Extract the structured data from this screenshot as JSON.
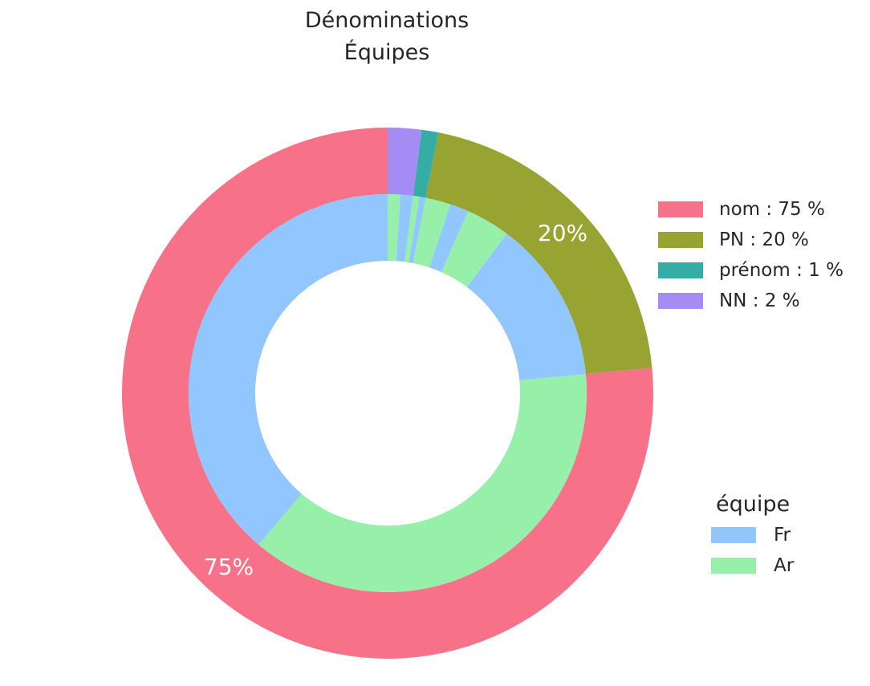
{
  "chart_data": {
    "type": "pie",
    "subtype": "nested-donut",
    "title": "Dénominations",
    "subtitle": "Équipes",
    "outer_ring": {
      "categories": [
        "nom",
        "PN",
        "prénom",
        "NN"
      ],
      "values": [
        75,
        20,
        1,
        2
      ],
      "legend_labels": [
        "nom : 75 %",
        "PN : 20 %",
        "prénom : 1 %",
        "NN : 2 %"
      ],
      "colors": [
        "#f77189",
        "#97a431",
        "#36ada4",
        "#a48cf4"
      ],
      "data_labels": [
        "75%",
        "20%",
        "",
        ""
      ]
    },
    "inner_ring": {
      "legend_title": "équipe",
      "categories": [
        "Fr",
        "Ar"
      ],
      "colors": [
        "#92c6ff",
        "#97f0aa"
      ],
      "segments": [
        {
          "parent": "nom",
          "equipe": "Fr",
          "value": 38
        },
        {
          "parent": "nom",
          "equipe": "Ar",
          "value": 37
        },
        {
          "parent": "PN",
          "equipe": "Fr",
          "value": 13
        },
        {
          "parent": "PN",
          "equipe": "Ar",
          "value": 3.5
        },
        {
          "parent": "PN",
          "equipe": "Fr",
          "value": 1.5
        },
        {
          "parent": "PN",
          "equipe": "Ar",
          "value": 2
        },
        {
          "parent": "prénom",
          "equipe": "Fr",
          "value": 0.5
        },
        {
          "parent": "prénom",
          "equipe": "Ar",
          "value": 0.5
        },
        {
          "parent": "NN",
          "equipe": "Fr",
          "value": 1
        },
        {
          "parent": "NN",
          "equipe": "Ar",
          "value": 1
        }
      ]
    },
    "legend_position": "right"
  }
}
